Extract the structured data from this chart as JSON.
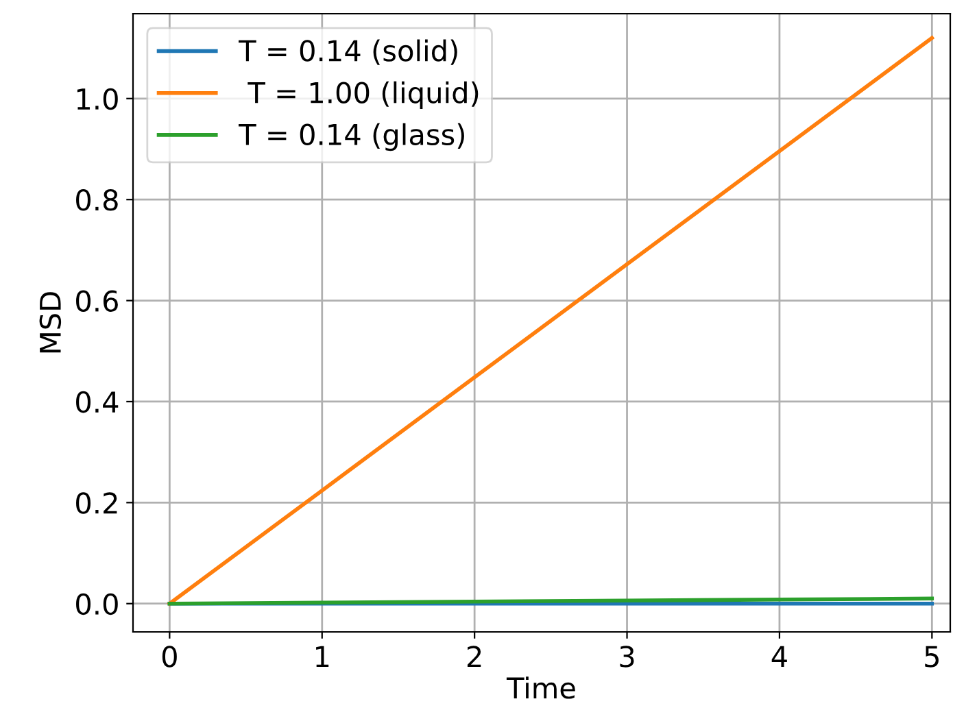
{
  "chart_data": {
    "type": "line",
    "xlabel": "Time",
    "ylabel": "MSD",
    "x": [
      0,
      1,
      2,
      3,
      4,
      5
    ],
    "series": [
      {
        "name": "T = 0.14 (solid)",
        "color": "#1f77b4",
        "values": [
          0,
          0,
          0,
          0,
          0,
          0
        ]
      },
      {
        "name": " T = 1.00 (liquid)",
        "color": "#ff7f0e",
        "values": [
          0,
          0.224,
          0.448,
          0.672,
          0.896,
          1.12
        ]
      },
      {
        "name": "T = 0.14 (glass)",
        "color": "#2ca02c",
        "values": [
          0,
          0.002,
          0.004,
          0.006,
          0.008,
          0.01
        ]
      }
    ],
    "xlim": [
      -0.24,
      5.12
    ],
    "ylim": [
      -0.056,
      1.168
    ],
    "xticks": [
      0,
      1,
      2,
      3,
      4,
      5
    ],
    "yticks": [
      {
        "value": 0,
        "label": "0.0"
      },
      {
        "value": 0.2,
        "label": "0.2"
      },
      {
        "value": 0.4,
        "label": "0.4"
      },
      {
        "value": 0.6,
        "label": "0.6"
      },
      {
        "value": 0.8,
        "label": "0.8"
      },
      {
        "value": 1.0,
        "label": "1.0"
      }
    ],
    "grid": true,
    "legend": "top left",
    "marker": "none",
    "line_style": "solid"
  }
}
